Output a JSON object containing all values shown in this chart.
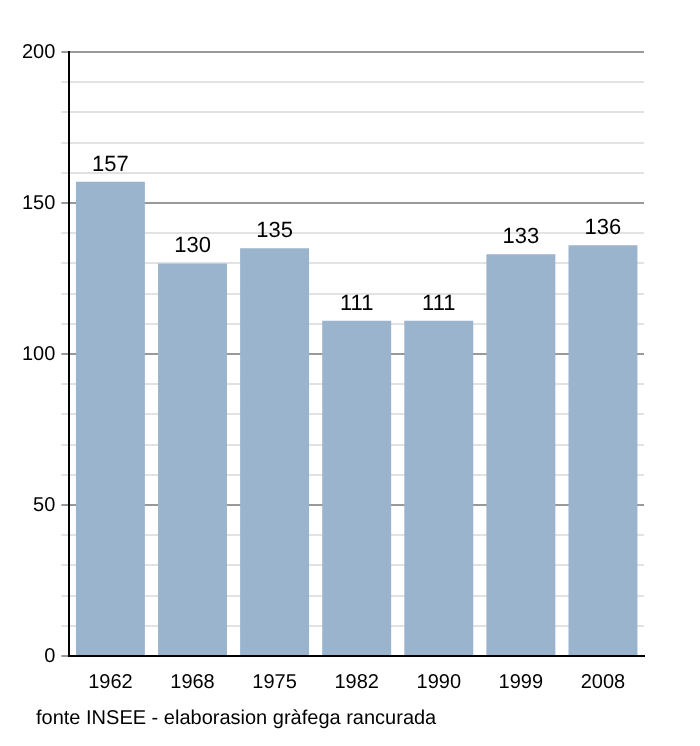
{
  "chart_data": {
    "type": "bar",
    "categories": [
      "1962",
      "1968",
      "1975",
      "1982",
      "1990",
      "1999",
      "2008"
    ],
    "values": [
      157,
      130,
      135,
      111,
      111,
      133,
      136
    ],
    "color": "#9bb4cd",
    "ylim": [
      0,
      200
    ],
    "yticks": [
      0,
      {
        "value": 10,
        "label": null
      },
      {
        "value": 20,
        "label": null
      },
      {
        "value": 30,
        "label": null
      },
      {
        "value": 40,
        "label": null
      },
      50,
      {
        "value": 60,
        "label": null
      },
      {
        "value": 70,
        "label": null
      },
      {
        "value": 80,
        "label": null
      },
      {
        "value": 90,
        "label": null
      },
      100,
      {
        "value": 110,
        "label": null
      },
      {
        "value": 120,
        "label": null
      },
      {
        "value": 130,
        "label": null
      },
      {
        "value": 140,
        "label": null
      },
      150,
      {
        "value": 160,
        "label": null
      },
      {
        "value": 170,
        "label": null
      },
      {
        "value": 180,
        "label": null
      },
      {
        "value": 190,
        "label": null
      },
      200
    ],
    "grid": "y",
    "data_labels": true,
    "legend": false,
    "annotations": [
      "fonte INSEE - elaborasion gràfega rancurada"
    ]
  }
}
